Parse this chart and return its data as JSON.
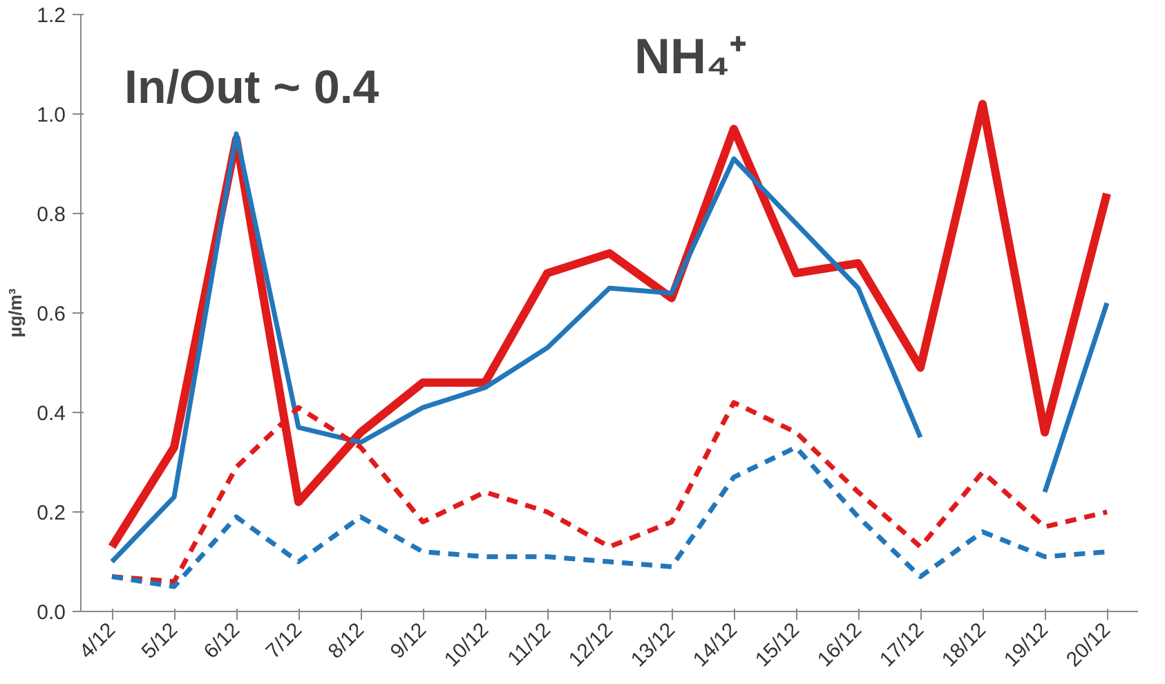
{
  "chart_data": {
    "type": "line",
    "title": "NH₄⁺",
    "ylabel": "μg/m³",
    "annotations": [
      "In/Out ~ 0.4"
    ],
    "categories": [
      "4/12",
      "5/12",
      "6/12",
      "7/12",
      "8/12",
      "9/12",
      "10/12",
      "11/12",
      "12/12",
      "13/12",
      "14/12",
      "15/12",
      "16/12",
      "17/12",
      "18/12",
      "19/12",
      "20/12"
    ],
    "ylim": [
      0,
      1.2
    ],
    "yticks": [
      {
        "value": 0,
        "label": "0.0"
      },
      0.2,
      0.4,
      0.6,
      0.8,
      {
        "value": 1,
        "label": "1.0"
      },
      1.2
    ],
    "grid": false,
    "marker": "none",
    "series": [
      {
        "color": "#e01b1b",
        "line_style": "solid",
        "values": [
          0.13,
          0.33,
          0.95,
          0.22,
          0.36,
          0.46,
          0.46,
          0.68,
          0.72,
          0.63,
          0.97,
          0.68,
          0.7,
          0.49,
          1.02,
          0.36,
          0.84
        ]
      },
      {
        "color": "#2277bb",
        "line_style": "solid",
        "values": [
          0.1,
          0.23,
          0.96,
          0.37,
          0.34,
          0.41,
          0.45,
          0.53,
          0.65,
          0.64,
          0.91,
          0.78,
          0.65,
          0.35,
          null,
          0.24,
          0.62
        ]
      },
      {
        "color": "#e01b1b",
        "line_style": "dashed",
        "values": [
          0.07,
          0.06,
          0.29,
          0.41,
          0.33,
          0.18,
          0.24,
          0.2,
          0.13,
          0.18,
          0.42,
          0.36,
          0.24,
          0.13,
          0.28,
          0.17,
          0.2
        ]
      },
      {
        "color": "#2277bb",
        "line_style": "dashed",
        "values": [
          0.07,
          0.05,
          0.19,
          0.1,
          0.19,
          0.12,
          0.11,
          0.11,
          0.1,
          0.09,
          0.27,
          0.33,
          0.19,
          0.07,
          0.16,
          0.11,
          0.12
        ]
      }
    ]
  }
}
